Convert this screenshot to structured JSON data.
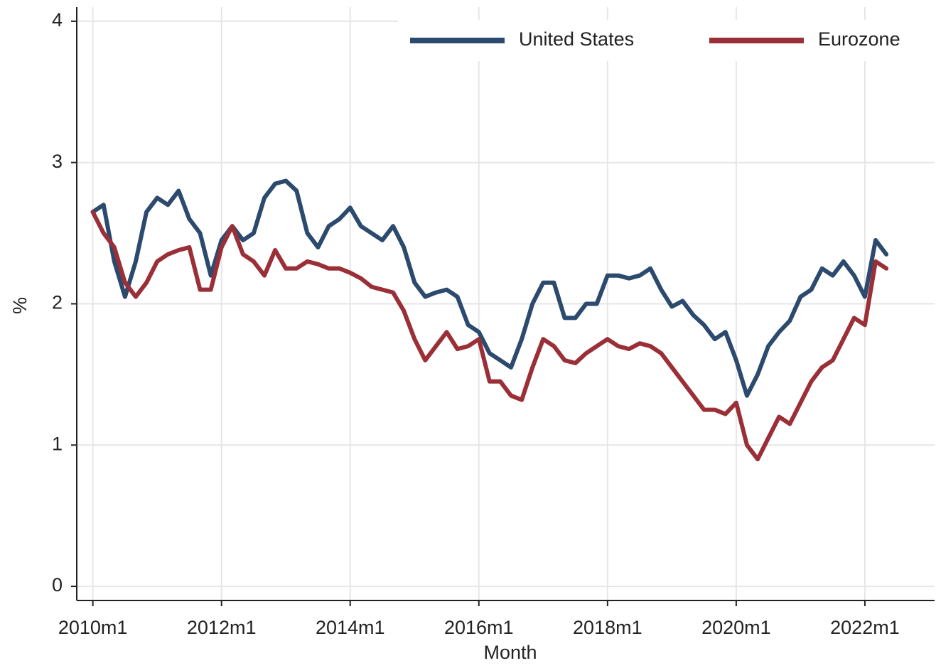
{
  "chart_data": {
    "type": "line",
    "x_label": "Month",
    "y_label": "%",
    "x": [
      "2010m1",
      "2010m3",
      "2010m5",
      "2010m7",
      "2010m9",
      "2010m11",
      "2011m1",
      "2011m3",
      "2011m5",
      "2011m7",
      "2011m9",
      "2011m11",
      "2012m1",
      "2012m3",
      "2012m5",
      "2012m7",
      "2012m9",
      "2012m11",
      "2013m1",
      "2013m3",
      "2013m5",
      "2013m7",
      "2013m9",
      "2013m11",
      "2014m1",
      "2014m3",
      "2014m5",
      "2014m7",
      "2014m9",
      "2014m11",
      "2015m1",
      "2015m3",
      "2015m5",
      "2015m7",
      "2015m9",
      "2015m11",
      "2016m1",
      "2016m3",
      "2016m5",
      "2016m7",
      "2016m9",
      "2016m11",
      "2017m1",
      "2017m3",
      "2017m5",
      "2017m7",
      "2017m9",
      "2017m11",
      "2018m1",
      "2018m3",
      "2018m5",
      "2018m7",
      "2018m9",
      "2018m11",
      "2019m1",
      "2019m3",
      "2019m5",
      "2019m7",
      "2019m9",
      "2019m11",
      "2020m1",
      "2020m3",
      "2020m5",
      "2020m7",
      "2020m9",
      "2020m11",
      "2021m1",
      "2021m3",
      "2021m5",
      "2021m7",
      "2021m9",
      "2021m11",
      "2022m1",
      "2022m3",
      "2022m5"
    ],
    "series": [
      {
        "name": "United States",
        "color": "#2c4a6e",
        "values": [
          2.65,
          2.7,
          2.3,
          2.05,
          2.3,
          2.65,
          2.75,
          2.7,
          2.8,
          2.6,
          2.5,
          2.2,
          2.45,
          2.55,
          2.45,
          2.5,
          2.75,
          2.85,
          2.87,
          2.8,
          2.5,
          2.4,
          2.55,
          2.6,
          2.68,
          2.55,
          2.5,
          2.45,
          2.55,
          2.4,
          2.15,
          2.05,
          2.08,
          2.1,
          2.05,
          1.85,
          1.8,
          1.65,
          1.6,
          1.55,
          1.75,
          2.0,
          2.15,
          2.15,
          1.9,
          1.9,
          2.0,
          2.0,
          2.2,
          2.2,
          2.18,
          2.2,
          2.25,
          2.1,
          1.98,
          2.02,
          1.92,
          1.85,
          1.75,
          1.8,
          1.6,
          1.35,
          1.5,
          1.7,
          1.8,
          1.88,
          2.05,
          2.1,
          2.25,
          2.2,
          2.3,
          2.2,
          2.05,
          2.45,
          2.35
        ]
      },
      {
        "name": "Eurozone",
        "color": "#9a2f38",
        "values": [
          2.65,
          2.5,
          2.4,
          2.15,
          2.05,
          2.15,
          2.3,
          2.35,
          2.38,
          2.4,
          2.1,
          2.1,
          2.4,
          2.55,
          2.35,
          2.3,
          2.2,
          2.38,
          2.25,
          2.25,
          2.3,
          2.28,
          2.25,
          2.25,
          2.22,
          2.18,
          2.12,
          2.1,
          2.08,
          1.95,
          1.75,
          1.6,
          1.7,
          1.8,
          1.68,
          1.7,
          1.75,
          1.45,
          1.45,
          1.35,
          1.32,
          1.55,
          1.75,
          1.7,
          1.6,
          1.58,
          1.65,
          1.7,
          1.75,
          1.7,
          1.68,
          1.72,
          1.7,
          1.65,
          1.55,
          1.45,
          1.35,
          1.25,
          1.25,
          1.22,
          1.3,
          1.0,
          0.9,
          1.05,
          1.2,
          1.15,
          1.3,
          1.45,
          1.55,
          1.6,
          1.75,
          1.9,
          1.85,
          2.3,
          2.25
        ]
      }
    ],
    "xlim": [
      "2009m10",
      "2023m2"
    ],
    "xticks": [
      "2010m1",
      "2012m1",
      "2014m1",
      "2016m1",
      "2018m1",
      "2020m1",
      "2022m1"
    ],
    "ylim": [
      -0.1,
      4.1
    ],
    "yticks": [
      0,
      1,
      2,
      3,
      4
    ],
    "grid": true,
    "legend": "top-right"
  }
}
